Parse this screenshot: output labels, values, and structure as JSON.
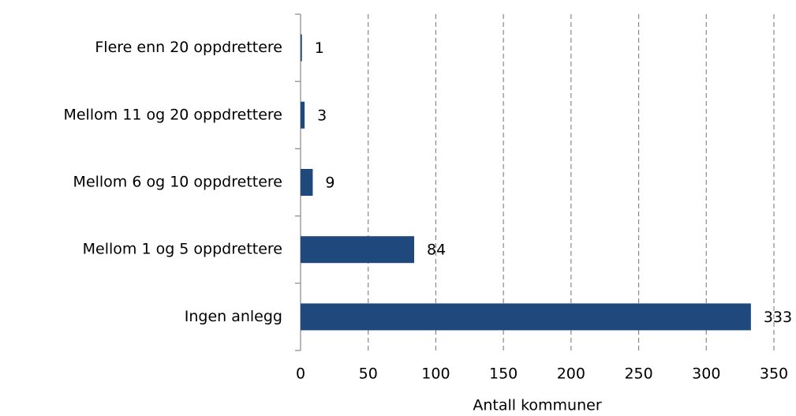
{
  "chart_data": {
    "type": "barh",
    "categories": [
      "Flere enn 20 oppdrettere",
      "Mellom 11 og 20 oppdrettere",
      "Mellom 6 og 10 oppdrettere",
      "Mellom 1 og 5 oppdrettere",
      "Ingen anlegg"
    ],
    "values": [
      1,
      3,
      9,
      84,
      333
    ],
    "color": "#1f497d",
    "xlabel": "Antall kommuner",
    "xlim": [
      0,
      350
    ],
    "xticks": [
      0,
      50,
      100,
      150,
      200,
      250,
      300,
      350
    ],
    "grid": true
  }
}
